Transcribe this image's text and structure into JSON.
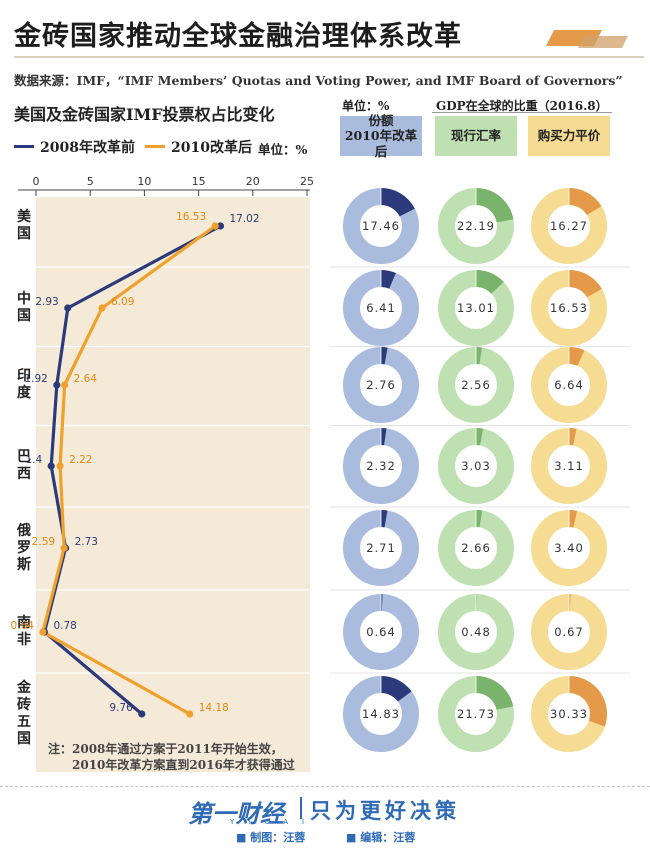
{
  "title": "金砖国家推动全球金融治理体系改革",
  "source": "数据来源：IMF，“IMF Members’ Quotas and Voting Power, and IMF Board of Governors”",
  "left_panel": {
    "title": "美国及金砖国家IMF投票权占比变化",
    "legend_before": "2008年改革前",
    "legend_after": "2010改革后",
    "unit": "单位：%",
    "note_line1": "注：2008年通过方案于2011年开始生效，",
    "note_line2": "2010年改革方案直到2016年才获得通过"
  },
  "right_panel": {
    "unit": "单位：%",
    "gdp_title": "GDP在全球的比重（2016.8）",
    "header_quota_line1": "份额",
    "header_quota_line2": "2010年改革后",
    "header_fx": "现行汇率",
    "header_ppp": "购买力平价"
  },
  "footer": {
    "logo": "第一财经",
    "logo_sub": "YICAI",
    "slogan": "只为更好决策",
    "credit_chart": "■ 制图：汪蓉",
    "credit_edit": "■ 编辑：汪蓉"
  },
  "colors": {
    "before": "#2b3a7a",
    "after": "#f0a12b",
    "quota_fill": "#2b3a7a",
    "quota_ring": "#a9bcde",
    "fx_fill": "#7ab36b",
    "fx_ring": "#bfe0b0",
    "ppp_fill": "#e49a49",
    "ppp_ring": "#f6dc93",
    "panel_bg": "#f5ead8"
  },
  "chart_data": [
    {
      "type": "line",
      "title": "美国及金砖国家IMF投票权占比变化",
      "xlabel": "",
      "ylabel": "",
      "xlim": [
        0,
        25
      ],
      "xticks": [
        0,
        5,
        10,
        15,
        20,
        25
      ],
      "categories": [
        "美国",
        "中国",
        "印度",
        "巴西",
        "俄罗斯",
        "南非",
        "金砖五国"
      ],
      "series": [
        {
          "name": "2008年改革前",
          "values": [
            17.02,
            2.93,
            1.92,
            1.4,
            2.73,
            0.78,
            9.76
          ]
        },
        {
          "name": "2010改革后",
          "values": [
            16.53,
            6.09,
            2.64,
            2.22,
            2.59,
            0.64,
            14.18
          ]
        }
      ]
    },
    {
      "type": "pie",
      "title": "份额 2010年改革后",
      "categories": [
        "美国",
        "中国",
        "印度",
        "巴西",
        "俄罗斯",
        "南非",
        "金砖五国"
      ],
      "values": [
        17.46,
        6.41,
        2.76,
        2.32,
        2.71,
        0.64,
        14.83
      ],
      "labels": [
        "17.46",
        "6.41",
        "2.76",
        "2.32",
        "2.71",
        "0.64",
        "14.83"
      ]
    },
    {
      "type": "pie",
      "title": "现行汇率",
      "categories": [
        "美国",
        "中国",
        "印度",
        "巴西",
        "俄罗斯",
        "南非",
        "金砖五国"
      ],
      "values": [
        22.19,
        13.01,
        2.56,
        3.03,
        2.66,
        0.48,
        21.73
      ],
      "labels": [
        "22.19",
        "13.01",
        "2.56",
        "3.03",
        "2.66",
        "0.48",
        "21.73"
      ]
    },
    {
      "type": "pie",
      "title": "购买力平价",
      "categories": [
        "美国",
        "中国",
        "印度",
        "巴西",
        "俄罗斯",
        "南非",
        "金砖五国"
      ],
      "values": [
        16.27,
        16.53,
        6.64,
        3.11,
        3.4,
        0.67,
        30.33
      ],
      "labels": [
        "16.27",
        "16.53",
        "6.64",
        "3.11",
        "3.40",
        "0.67",
        "30.33"
      ]
    }
  ]
}
